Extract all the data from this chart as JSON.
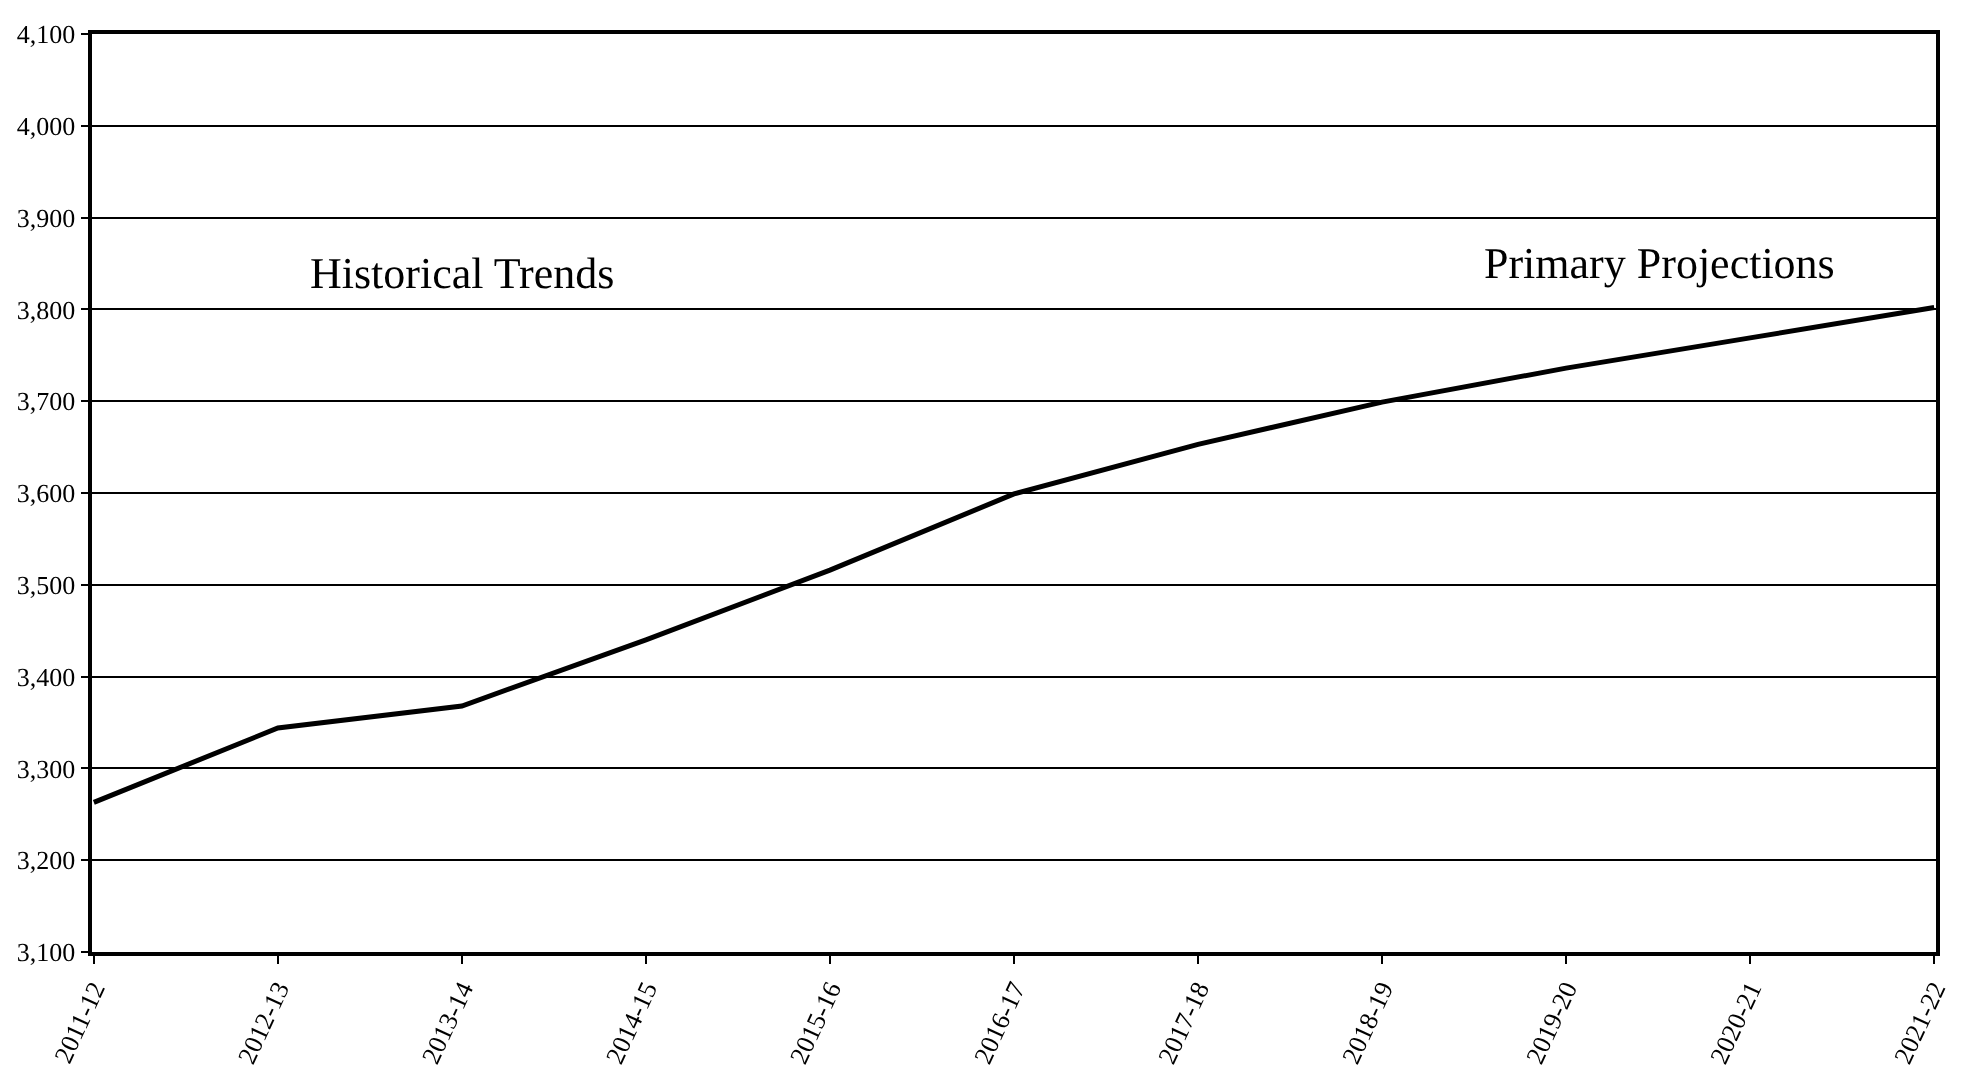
{
  "chart_data": {
    "type": "line",
    "categories": [
      "2011-12",
      "2012-13",
      "2013-14",
      "2014-15",
      "2015-16",
      "2016-17",
      "2017-18",
      "2018-19",
      "2019-20",
      "2020-21",
      "2021-22"
    ],
    "series": [
      {
        "color": "#000000",
        "values": [
          3263,
          3344,
          3368,
          3440,
          3516,
          3599,
          3653,
          3699,
          3736,
          3769,
          3802
        ]
      }
    ],
    "ylim": [
      3100,
      4100
    ],
    "yticks": [
      {
        "value": 3100,
        "label": "3,100"
      },
      {
        "value": 3200,
        "label": "3,200"
      },
      {
        "value": 3300,
        "label": "3,300"
      },
      {
        "value": 3400,
        "label": "3,400"
      },
      {
        "value": 3500,
        "label": "3,500"
      },
      {
        "value": 3600,
        "label": "3,600"
      },
      {
        "value": 3700,
        "label": "3,700"
      },
      {
        "value": 3800,
        "label": "3,800"
      },
      {
        "value": 3900,
        "label": "3,900"
      },
      {
        "value": 4000,
        "label": "4,000"
      },
      {
        "value": 4100,
        "label": "4,100"
      }
    ],
    "annotations": [
      "Historical Trends",
      "Primary Projections"
    ],
    "grid": "y",
    "marker": "none",
    "line_style": "solid"
  }
}
